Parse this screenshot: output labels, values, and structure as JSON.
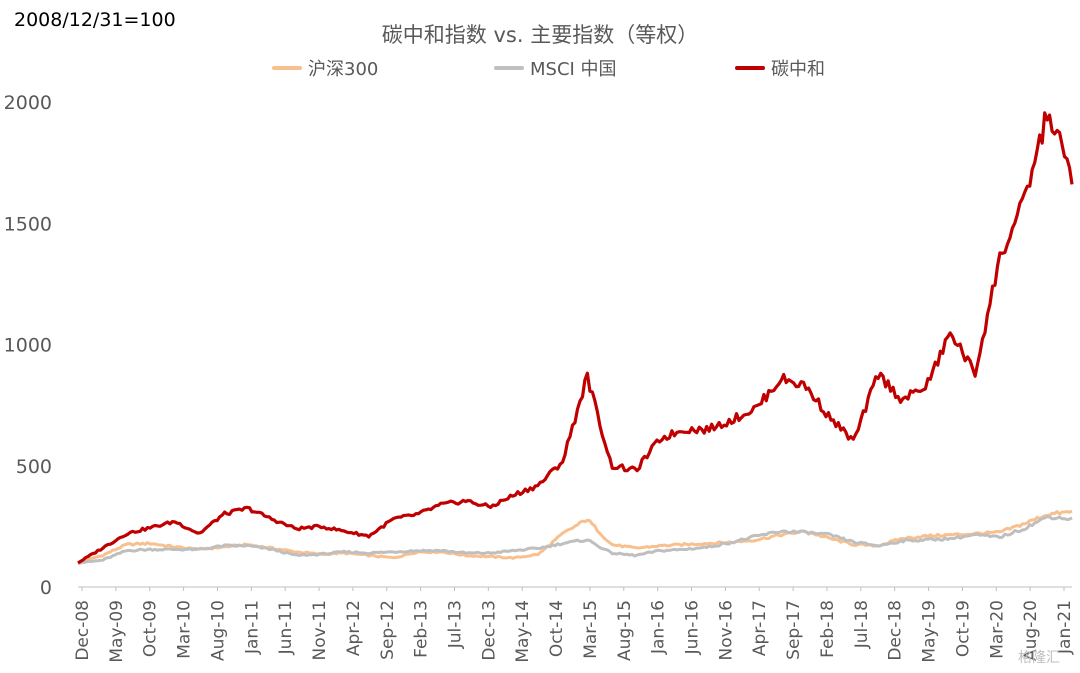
{
  "note": "2008/12/31=100",
  "watermark": "格隆汇",
  "chart_data": {
    "type": "line",
    "title": "碳中和指数 vs. 主要指数（等权）",
    "xlabel": "",
    "ylabel": "",
    "ylim": [
      0,
      2000
    ],
    "yticks": [
      0,
      500,
      1000,
      1500,
      2000
    ],
    "x_tick_labels": [
      "Dec-08",
      "May-09",
      "Oct-09",
      "Mar-10",
      "Aug-10",
      "Jan-11",
      "Jun-11",
      "Nov-11",
      "Apr-12",
      "Sep-12",
      "Feb-13",
      "Jul-13",
      "Dec-13",
      "May-14",
      "Oct-14",
      "Mar-15",
      "Aug-15",
      "Jan-16",
      "Jun-16",
      "Nov-16",
      "Apr-17",
      "Sep-17",
      "Feb-18",
      "Jul-18",
      "Dec-18",
      "May-19",
      "Oct-19",
      "Mar-20",
      "Aug-20",
      "Jan-21"
    ],
    "grid": false,
    "legend_position": "top",
    "series": [
      {
        "name": "沪深300",
        "color": "#f8c08f",
        "values": [
          100,
          130,
          175,
          180,
          165,
          155,
          165,
          175,
          160,
          145,
          135,
          140,
          130,
          120,
          145,
          145,
          130,
          125,
          120,
          135,
          220,
          280,
          175,
          160,
          170,
          175,
          180,
          185,
          195,
          215,
          230,
          200,
          175,
          170,
          200,
          210,
          215,
          220,
          225,
          260,
          300,
          310
        ]
      },
      {
        "name": "MSCI 中国",
        "color": "#bfbfbf",
        "values": [
          100,
          110,
          150,
          155,
          155,
          155,
          170,
          170,
          155,
          130,
          135,
          145,
          140,
          145,
          150,
          150,
          140,
          140,
          150,
          160,
          180,
          195,
          140,
          130,
          150,
          155,
          165,
          185,
          210,
          230,
          225,
          215,
          185,
          170,
          190,
          195,
          200,
          215,
          205,
          240,
          290,
          280
        ]
      },
      {
        "name": "碳中和",
        "color": "#c00000",
        "values": [
          100,
          160,
          220,
          245,
          270,
          220,
          300,
          325,
          280,
          240,
          250,
          230,
          210,
          280,
          300,
          340,
          355,
          330,
          380,
          420,
          520,
          870,
          500,
          480,
          610,
          650,
          650,
          690,
          740,
          860,
          830,
          700,
          600,
          880,
          770,
          830,
          1050,
          880,
          1350,
          1580,
          1960,
          1700
        ]
      }
    ]
  }
}
